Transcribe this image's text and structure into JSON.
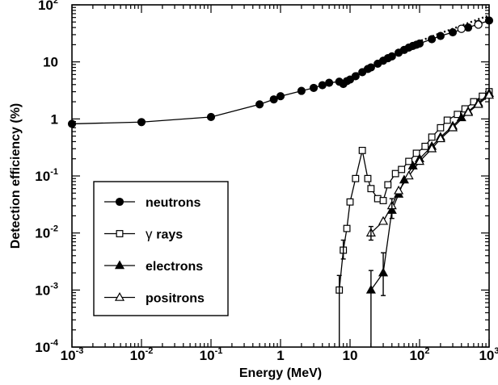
{
  "chart_data": {
    "type": "line",
    "xlabel": "Energy (MeV)",
    "ylabel": "Detection efficiency (%)",
    "x_scale": "log",
    "y_scale": "log",
    "xlim": [
      0.001,
      1000
    ],
    "ylim": [
      0.0001,
      100
    ],
    "x_ticks": [
      {
        "base": "10",
        "exp": "-3",
        "value": 0.001
      },
      {
        "base": "10",
        "exp": "-2",
        "value": 0.01
      },
      {
        "base": "10",
        "exp": "-1",
        "value": 0.1
      },
      {
        "base": "1",
        "exp": "",
        "value": 1
      },
      {
        "base": "10",
        "exp": "",
        "value": 10
      },
      {
        "base": "10",
        "exp": "2",
        "value": 100
      },
      {
        "base": "10",
        "exp": "3",
        "value": 1000
      }
    ],
    "y_ticks": [
      {
        "base": "10",
        "exp": "-4",
        "value": 0.0001
      },
      {
        "base": "10",
        "exp": "-3",
        "value": 0.001
      },
      {
        "base": "10",
        "exp": "-2",
        "value": 0.01
      },
      {
        "base": "10",
        "exp": "-1",
        "value": 0.1
      },
      {
        "base": "1",
        "exp": "",
        "value": 1
      },
      {
        "base": "10",
        "exp": "",
        "value": 10
      },
      {
        "base": "10",
        "exp": "2",
        "value": 100
      }
    ],
    "legend_position": "bottom-left",
    "grid": false,
    "series": [
      {
        "name": "neutrons",
        "marker": "filled-circle",
        "points": [
          [
            0.001,
            0.82
          ],
          [
            0.01,
            0.88
          ],
          [
            0.1,
            1.08
          ],
          [
            0.5,
            1.8
          ],
          [
            0.8,
            2.2
          ],
          [
            1.0,
            2.5
          ],
          [
            2.0,
            3.1
          ],
          [
            3.0,
            3.5
          ],
          [
            4.0,
            3.9
          ],
          [
            5.0,
            4.3
          ],
          [
            7.0,
            4.5
          ],
          [
            8.0,
            4.1
          ],
          [
            9.0,
            4.6
          ],
          [
            10.0,
            4.9
          ],
          [
            12.0,
            5.6
          ],
          [
            15.0,
            6.6
          ],
          [
            18.0,
            7.5
          ],
          [
            20.0,
            8.0
          ],
          [
            25.0,
            9.3
          ],
          [
            30.0,
            10.5
          ],
          [
            35.0,
            11.6
          ],
          [
            40.0,
            12.5
          ],
          [
            50.0,
            14.5
          ],
          [
            60.0,
            16.2
          ],
          [
            70.0,
            17.8
          ],
          [
            80.0,
            19.0
          ],
          [
            90.0,
            20.0
          ],
          [
            100.0,
            21.0
          ],
          [
            150.0,
            25.0
          ],
          [
            200.0,
            28.5
          ],
          [
            300.0,
            33.0
          ],
          [
            500.0,
            40.0
          ],
          [
            700.0,
            46.0
          ],
          [
            1000.0,
            53.0
          ]
        ]
      },
      {
        "name": "neutrons (dotted)",
        "marker": "none",
        "style": "dotted",
        "points": [
          [
            8.0,
            4.3
          ],
          [
            10.0,
            5.3
          ],
          [
            15.0,
            7.2
          ],
          [
            20.0,
            8.7
          ],
          [
            30.0,
            11.6
          ],
          [
            50.0,
            15.6
          ],
          [
            100.0,
            23.0
          ],
          [
            200.0,
            32.0
          ],
          [
            300.0,
            38.0
          ],
          [
            500.0,
            48.0
          ],
          [
            700.0,
            56.0
          ],
          [
            1000.0,
            65.0
          ]
        ]
      },
      {
        "name": "neutrons (open)",
        "marker": "open-circle",
        "points": [
          [
            400.0,
            38.0
          ],
          [
            700.0,
            45.0
          ]
        ]
      },
      {
        "name": "γ rays",
        "marker": "open-square",
        "points": [
          [
            7.0,
            0.001
          ],
          [
            8.0,
            0.005
          ],
          [
            9.0,
            0.012
          ],
          [
            10.0,
            0.035
          ],
          [
            12.0,
            0.09
          ],
          [
            15.0,
            0.28
          ],
          [
            18.0,
            0.09
          ],
          [
            20.0,
            0.06
          ],
          [
            25.0,
            0.04
          ],
          [
            30.0,
            0.037
          ],
          [
            35.0,
            0.07
          ],
          [
            45.0,
            0.11
          ],
          [
            55.0,
            0.13
          ],
          [
            70.0,
            0.18
          ],
          [
            90.0,
            0.25
          ],
          [
            120.0,
            0.33
          ],
          [
            150.0,
            0.48
          ],
          [
            200.0,
            0.7
          ],
          [
            250.0,
            0.95
          ],
          [
            350.0,
            1.2
          ],
          [
            450.0,
            1.5
          ],
          [
            600.0,
            2.0
          ],
          [
            800.0,
            2.5
          ],
          [
            1000.0,
            3.0
          ]
        ]
      },
      {
        "name": "electrons",
        "marker": "filled-triangle",
        "points": [
          [
            20.0,
            0.001
          ],
          [
            30.0,
            0.002
          ],
          [
            40.0,
            0.025
          ],
          [
            50.0,
            0.048
          ],
          [
            60.0,
            0.085
          ],
          [
            80.0,
            0.15
          ],
          [
            100.0,
            0.2
          ],
          [
            150.0,
            0.33
          ],
          [
            200.0,
            0.48
          ],
          [
            300.0,
            0.75
          ],
          [
            400.0,
            1.05
          ],
          [
            500.0,
            1.35
          ],
          [
            700.0,
            1.9
          ],
          [
            1000.0,
            2.8
          ]
        ]
      },
      {
        "name": "positrons",
        "marker": "open-triangle",
        "points": [
          [
            20.0,
            0.01
          ],
          [
            30.0,
            0.016
          ],
          [
            40.0,
            0.03
          ],
          [
            50.0,
            0.055
          ],
          [
            70.0,
            0.1
          ],
          [
            100.0,
            0.18
          ],
          [
            150.0,
            0.3
          ],
          [
            200.0,
            0.45
          ],
          [
            300.0,
            0.7
          ],
          [
            500.0,
            1.3
          ],
          [
            700.0,
            1.8
          ],
          [
            1000.0,
            2.6
          ]
        ]
      }
    ],
    "error_bars": [
      {
        "x": 7.0,
        "low": 0.0001,
        "high": 0.0018
      },
      {
        "x": 8.0,
        "low": 0.0035,
        "high": 0.0075
      },
      {
        "x": 20.0,
        "low": 0.0001,
        "high": 0.0022
      },
      {
        "x": 20.0,
        "low": 0.0075,
        "high": 0.013
      },
      {
        "x": 30.0,
        "low": 0.0008,
        "high": 0.0045
      },
      {
        "x": 40.0,
        "low": 0.018,
        "high": 0.04
      }
    ],
    "legend": [
      {
        "label": "neutrons",
        "marker": "filled-circle",
        "prefix": ""
      },
      {
        "label": "rays",
        "marker": "open-square",
        "prefix": "γ"
      },
      {
        "label": "electrons",
        "marker": "filled-triangle",
        "prefix": ""
      },
      {
        "label": "positrons",
        "marker": "open-triangle",
        "prefix": ""
      }
    ]
  }
}
